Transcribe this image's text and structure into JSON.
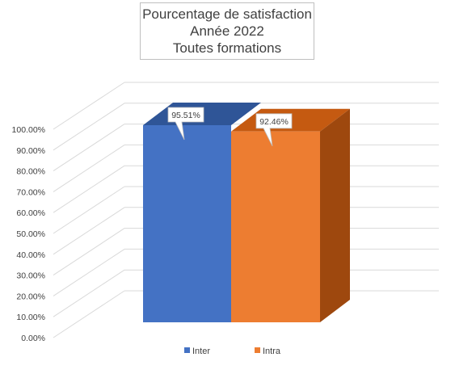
{
  "chart_data": {
    "type": "bar",
    "title_lines": [
      "Pourcentage de satisfaction",
      "Année 2022",
      "Toutes formations"
    ],
    "categories": [
      ""
    ],
    "series": [
      {
        "name": "Inter",
        "values": [
          95.51
        ],
        "label": "95.51%",
        "color": "#4472C4"
      },
      {
        "name": "Intra",
        "values": [
          92.46
        ],
        "label": "92.46%",
        "color": "#ED7D31"
      }
    ],
    "y_ticks": [
      "0.00%",
      "10.00%",
      "20.00%",
      "30.00%",
      "40.00%",
      "50.00%",
      "60.00%",
      "70.00%",
      "80.00%",
      "90.00%",
      "100.00%"
    ],
    "ylim": [
      0,
      100
    ],
    "grid": true,
    "three_d": true,
    "legend_position": "bottom",
    "xlabel": "",
    "ylabel": ""
  },
  "colors": {
    "inter": "#4472C4",
    "inter_top": "#2F5597",
    "intra": "#ED7D31",
    "intra_top": "#C55A11",
    "intra_side": "#9E480E",
    "grid": "#d9d9d9",
    "text": "#404040"
  }
}
